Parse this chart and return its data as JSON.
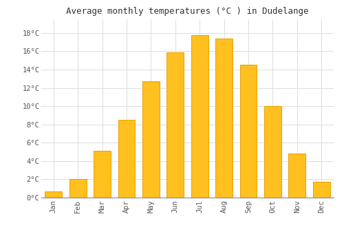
{
  "months": [
    "Jan",
    "Feb",
    "Mar",
    "Apr",
    "May",
    "Jun",
    "Jul",
    "Aug",
    "Sep",
    "Oct",
    "Nov",
    "Dec"
  ],
  "values": [
    0.7,
    2.0,
    5.1,
    8.5,
    12.7,
    15.9,
    17.8,
    17.4,
    14.5,
    10.0,
    4.8,
    1.7
  ],
  "bar_color": "#FFC020",
  "bar_edge_color": "#E8A000",
  "title": "Average monthly temperatures (°C ) in Dudelange",
  "title_fontsize": 9,
  "ylabel_ticks": [
    "0°C",
    "2°C",
    "4°C",
    "6°C",
    "8°C",
    "10°C",
    "12°C",
    "14°C",
    "16°C",
    "18°C"
  ],
  "ytick_values": [
    0,
    2,
    4,
    6,
    8,
    10,
    12,
    14,
    16,
    18
  ],
  "ylim": [
    0,
    19.5
  ],
  "background_color": "#ffffff",
  "grid_color": "#dddddd",
  "tick_label_color": "#555555",
  "font_family": "monospace",
  "tick_fontsize": 7.5,
  "bar_width": 0.7
}
